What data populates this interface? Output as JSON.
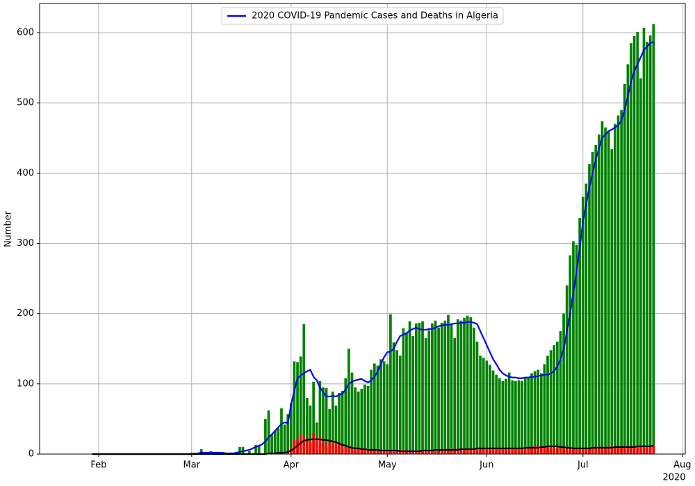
{
  "chart_data": {
    "type": "bar",
    "x": [
      30,
      31,
      32,
      33,
      34,
      35,
      36,
      37,
      38,
      39,
      40,
      41,
      42,
      43,
      44,
      45,
      46,
      47,
      48,
      49,
      50,
      51,
      52,
      53,
      54,
      55,
      56,
      57,
      58,
      59,
      60,
      61,
      62,
      63,
      64,
      65,
      66,
      67,
      68,
      69,
      70,
      71,
      72,
      73,
      74,
      75,
      76,
      77,
      78,
      79,
      80,
      81,
      82,
      83,
      84,
      85,
      86,
      87,
      88,
      89,
      90,
      91,
      92,
      93,
      94,
      95,
      96,
      97,
      98,
      99,
      100,
      101,
      102,
      103,
      104,
      105,
      106,
      107,
      108,
      109,
      110,
      111,
      112,
      113,
      114,
      115,
      116,
      117,
      118,
      119,
      120,
      121,
      122,
      123,
      124,
      125,
      126,
      127,
      128,
      129,
      130,
      131,
      132,
      133,
      134,
      135,
      136,
      137,
      138,
      139,
      140,
      141,
      142,
      143,
      144,
      145,
      146,
      147,
      148,
      149,
      150,
      151,
      152,
      153,
      154,
      155,
      156,
      157,
      158,
      159,
      160,
      161,
      162,
      163,
      164,
      165,
      166,
      167,
      168,
      169,
      170,
      171,
      172,
      173,
      174,
      175,
      176,
      177,
      178,
      179,
      180,
      181,
      182,
      183,
      184,
      185,
      186,
      187,
      188,
      189,
      190,
      191,
      192,
      193,
      194,
      195,
      196,
      197,
      198,
      199,
      200,
      201,
      202,
      203,
      204,
      205
    ],
    "series": [
      {
        "type": "bar",
        "color": "#008000",
        "values": [
          0,
          0,
          0,
          0,
          0,
          0,
          0,
          0,
          0,
          0,
          0,
          0,
          0,
          0,
          0,
          0,
          0,
          0,
          0,
          0,
          0,
          0,
          0,
          0,
          0,
          0,
          1,
          0,
          0,
          0,
          0,
          2,
          2,
          0,
          7,
          0,
          0,
          4,
          0,
          2,
          0,
          3,
          0,
          1,
          2,
          0,
          10,
          10,
          0,
          4,
          0,
          13,
          12,
          0,
          50,
          62,
          28,
          33,
          37,
          65,
          42,
          57,
          73,
          132,
          131,
          139,
          185,
          80,
          69,
          103,
          45,
          104,
          95,
          94,
          64,
          89,
          69,
          87,
          90,
          108,
          150,
          116,
          95,
          89,
          93,
          99,
          97,
          120,
          129,
          126,
          135,
          132,
          128,
          199,
          159,
          148,
          140,
          179,
          173,
          189,
          168,
          186,
          187,
          189,
          165,
          176,
          186,
          190,
          180,
          187,
          190,
          198,
          185,
          165,
          192,
          190,
          194,
          197,
          195,
          180,
          160,
          140,
          137,
          133,
          127,
          119,
          113,
          108,
          104,
          107,
          116,
          105,
          104,
          105,
          104,
          108,
          110,
          115,
          118,
          120,
          115,
          128,
          140,
          148,
          155,
          160,
          175,
          200,
          240,
          283,
          303,
          298,
          336,
          366,
          385,
          413,
          430,
          440,
          455,
          474,
          465,
          460,
          434,
          470,
          482,
          490,
          527,
          555,
          585,
          595,
          601,
          535,
          607,
          587,
          596,
          612
        ]
      },
      {
        "type": "bar",
        "color": "#ff0000",
        "values": [
          0,
          0,
          0,
          0,
          0,
          0,
          0,
          0,
          0,
          0,
          0,
          0,
          0,
          0,
          0,
          0,
          0,
          0,
          0,
          0,
          0,
          0,
          0,
          0,
          0,
          0,
          0,
          0,
          0,
          0,
          0,
          0,
          0,
          0,
          0,
          0,
          0,
          0,
          0,
          0,
          0,
          0,
          0,
          0,
          0,
          0,
          0,
          0,
          0,
          0,
          0,
          0,
          0,
          0,
          0,
          1,
          2,
          2,
          4,
          2,
          3,
          2,
          9,
          20,
          21,
          28,
          25,
          22,
          19,
          30,
          20,
          25,
          18,
          12,
          20,
          15,
          17,
          14,
          12,
          10,
          11,
          9,
          8,
          10,
          7,
          8,
          6,
          6,
          5,
          6,
          7,
          5,
          4,
          6,
          5,
          4,
          4,
          6,
          5,
          4,
          3,
          4,
          5,
          6,
          4,
          6,
          5,
          4,
          6,
          7,
          6,
          5,
          7,
          8,
          6,
          7,
          6,
          7,
          8,
          6,
          7,
          8,
          7,
          6,
          8,
          7,
          8,
          9,
          7,
          8,
          8,
          9,
          9,
          8,
          9,
          10,
          9,
          10,
          11,
          12,
          10,
          9,
          11,
          10,
          9,
          8,
          9,
          8,
          8,
          9,
          8,
          8,
          9,
          10,
          8,
          9,
          10,
          9,
          8,
          9,
          10,
          11,
          9,
          10,
          9,
          9,
          11,
          10,
          10,
          11,
          12,
          11,
          10,
          12,
          11,
          12
        ]
      },
      {
        "type": "line",
        "name": "2020 COVID-19 Pandemic Cases and Deaths in Algeria",
        "color": "#0000ff",
        "values": [
          0,
          0,
          0,
          0,
          0,
          0,
          0,
          0,
          0,
          0,
          0,
          0,
          0,
          0,
          0,
          0,
          0,
          0,
          0,
          0,
          0,
          0,
          0,
          0,
          0,
          0,
          0,
          0,
          0,
          0,
          0,
          0,
          0,
          1,
          2,
          2,
          2,
          2,
          2,
          2,
          2,
          1,
          1,
          1,
          1,
          2,
          3,
          4,
          5,
          6,
          8,
          10,
          12,
          14,
          18,
          24,
          28,
          33,
          38,
          43,
          45,
          44,
          70,
          90,
          108,
          112,
          115,
          118,
          120,
          110,
          105,
          95,
          88,
          82,
          82,
          83,
          82,
          84,
          86,
          92,
          100,
          103,
          105,
          106,
          107,
          104,
          102,
          105,
          110,
          118,
          128,
          138,
          145,
          146,
          150,
          160,
          168,
          170,
          172,
          176,
          178,
          180,
          178,
          177,
          177,
          178,
          178,
          180,
          182,
          183,
          184,
          184,
          185,
          186,
          186,
          187,
          187,
          188,
          188,
          187,
          185,
          175,
          165,
          155,
          145,
          135,
          128,
          120,
          115,
          112,
          110,
          109,
          109,
          108,
          108,
          109,
          109,
          110,
          110,
          111,
          112,
          113,
          113,
          115,
          118,
          125,
          135,
          150,
          175,
          200,
          230,
          260,
          295,
          330,
          355,
          380,
          400,
          420,
          435,
          450,
          455,
          460,
          462,
          465,
          468,
          475,
          490,
          510,
          530,
          545,
          555,
          565,
          575,
          580,
          585,
          587
        ]
      },
      {
        "type": "line",
        "color": "#000000",
        "values": [
          0,
          0,
          0,
          0,
          0,
          0,
          0,
          0,
          0,
          0,
          0,
          0,
          0,
          0,
          0,
          0,
          0,
          0,
          0,
          0,
          0,
          0,
          0,
          0,
          0,
          0,
          0,
          0,
          0,
          0,
          0,
          0,
          0,
          0,
          0,
          0,
          0,
          0,
          0,
          0,
          0,
          0,
          0,
          0,
          0,
          0,
          0,
          0,
          0,
          0,
          0,
          0,
          0,
          0,
          0,
          1,
          1,
          1,
          2,
          2,
          2,
          3,
          5,
          8,
          12,
          16,
          19,
          20,
          21,
          21,
          21,
          21,
          20,
          20,
          19,
          18,
          17,
          15,
          13,
          12,
          10,
          9,
          8,
          8,
          7,
          7,
          6,
          6,
          6,
          6,
          5,
          5,
          5,
          5,
          5,
          5,
          4,
          4,
          4,
          4,
          4,
          4,
          4,
          5,
          5,
          5,
          5,
          6,
          6,
          6,
          6,
          6,
          6,
          6,
          6,
          7,
          7,
          7,
          7,
          7,
          8,
          8,
          8,
          8,
          8,
          8,
          8,
          8,
          8,
          8,
          8,
          8,
          8,
          8,
          8,
          9,
          9,
          9,
          9,
          9,
          10,
          10,
          11,
          11,
          11,
          11,
          10,
          10,
          9,
          9,
          8,
          8,
          8,
          8,
          8,
          8,
          9,
          9,
          9,
          9,
          9,
          9,
          9,
          10,
          10,
          10,
          10,
          10,
          10,
          10,
          11,
          11,
          11,
          11,
          11,
          12
        ]
      }
    ],
    "xlim": [
      13.6,
      214.9
    ],
    "xticks": [
      {
        "value": 32,
        "label": "Feb"
      },
      {
        "value": 61,
        "label": "Mar"
      },
      {
        "value": 92,
        "label": "Apr"
      },
      {
        "value": 122,
        "label": "May"
      },
      {
        "value": 153,
        "label": "Jun"
      },
      {
        "value": 183,
        "label": "Jul"
      },
      {
        "value": 214,
        "label": "Aug"
      }
    ],
    "x_offset_label": "2020",
    "ylabel": "Number",
    "ylim": [
      0,
      641.5
    ],
    "yticks": [
      0,
      100,
      200,
      300,
      400,
      500,
      600
    ],
    "grid": true,
    "legend": "upper center"
  }
}
